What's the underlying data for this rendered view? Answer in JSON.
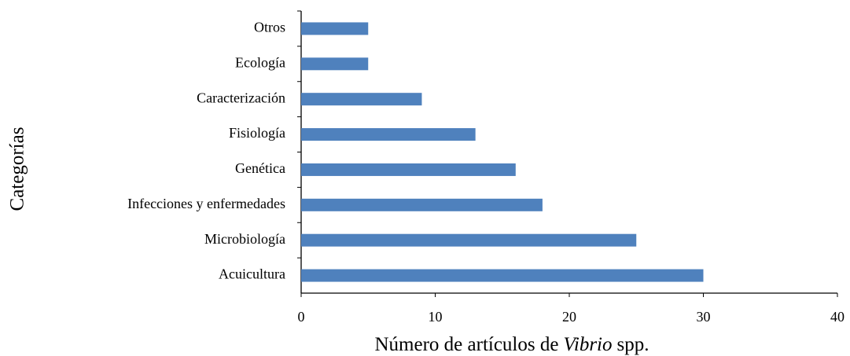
{
  "chart_data": {
    "type": "barh",
    "categories": [
      "Otros",
      "Ecología",
      "Caracterización",
      "Fisiología",
      "Genética",
      "Infecciones y enfermedades",
      "Microbiología",
      "Acuicultura"
    ],
    "values": [
      5,
      5,
      9,
      13,
      16,
      18,
      25,
      30
    ],
    "color": "#4f81bd",
    "xlabel_parts": [
      "Número de artículos de",
      "Vibrio",
      "spp."
    ],
    "ylabel": "Categorías",
    "xlim": [
      0,
      40
    ],
    "xticks": [
      0,
      10,
      20,
      30,
      40
    ],
    "grid": false
  }
}
